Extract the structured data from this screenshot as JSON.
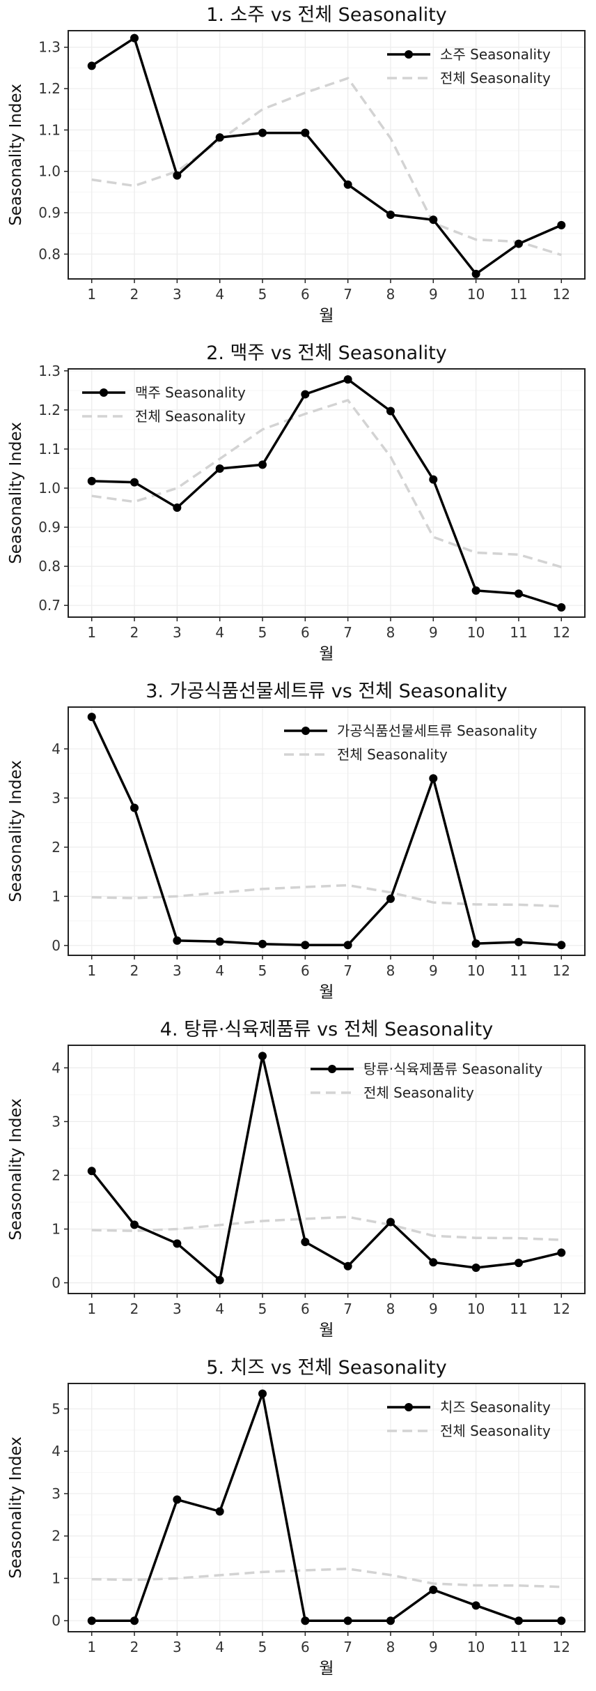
{
  "style": {
    "series_color": "#000000",
    "overall_color": "#d3d3d3"
  },
  "chart_data": [
    {
      "type": "line",
      "title": "1. 소주 vs 전체 Seasonality",
      "xlabel": "월",
      "ylabel": "Seasonality Index",
      "x": [
        1,
        2,
        3,
        4,
        5,
        6,
        7,
        8,
        9,
        10,
        11,
        12
      ],
      "ylim": [
        0.74,
        1.34
      ],
      "yticks": [
        0.8,
        0.9,
        1.0,
        1.1,
        1.2,
        1.3
      ],
      "ytick_labels": [
        "0.8",
        "0.9",
        "1.0",
        "1.1",
        "1.2",
        "1.3"
      ],
      "grid": true,
      "legend_position": "top-right",
      "series": [
        {
          "name": "소주 Seasonality",
          "style": "solid-markers",
          "values": [
            1.255,
            1.322,
            0.99,
            1.082,
            1.093,
            1.093,
            0.968,
            0.895,
            0.883,
            0.752,
            0.825,
            0.87
          ]
        },
        {
          "name": "전체 Seasonality",
          "style": "dashed",
          "values": [
            0.98,
            0.965,
            1.0,
            1.075,
            1.15,
            1.19,
            1.225,
            1.08,
            0.875,
            0.835,
            0.83,
            0.798
          ]
        }
      ]
    },
    {
      "type": "line",
      "title": "2. 맥주 vs 전체 Seasonality",
      "xlabel": "월",
      "ylabel": "Seasonality Index",
      "x": [
        1,
        2,
        3,
        4,
        5,
        6,
        7,
        8,
        9,
        10,
        11,
        12
      ],
      "ylim": [
        0.67,
        1.305
      ],
      "yticks": [
        0.7,
        0.8,
        0.9,
        1.0,
        1.1,
        1.2,
        1.3
      ],
      "ytick_labels": [
        "0.7",
        "0.8",
        "0.9",
        "1.0",
        "1.1",
        "1.2",
        "1.3"
      ],
      "grid": true,
      "legend_position": "top-left",
      "series": [
        {
          "name": "맥주 Seasonality",
          "style": "solid-markers",
          "values": [
            1.018,
            1.015,
            0.95,
            1.05,
            1.06,
            1.24,
            1.278,
            1.197,
            1.022,
            0.738,
            0.73,
            0.695
          ]
        },
        {
          "name": "전체 Seasonality",
          "style": "dashed",
          "values": [
            0.98,
            0.965,
            1.0,
            1.075,
            1.15,
            1.19,
            1.225,
            1.08,
            0.875,
            0.835,
            0.83,
            0.798
          ]
        }
      ]
    },
    {
      "type": "line",
      "title": "3. 가공식품선물세트류 vs 전체 Seasonality",
      "xlabel": "월",
      "ylabel": "Seasonality Index",
      "x": [
        1,
        2,
        3,
        4,
        5,
        6,
        7,
        8,
        9,
        10,
        11,
        12
      ],
      "ylim": [
        -0.2,
        4.85
      ],
      "yticks": [
        0,
        1,
        2,
        3,
        4
      ],
      "ytick_labels": [
        "0",
        "1",
        "2",
        "3",
        "4"
      ],
      "grid": true,
      "legend_position": "top-right",
      "series": [
        {
          "name": "가공식품선물세트류 Seasonality",
          "style": "solid-markers",
          "values": [
            4.65,
            2.8,
            0.1,
            0.08,
            0.03,
            0.01,
            0.01,
            0.95,
            3.4,
            0.04,
            0.07,
            0.01
          ]
        },
        {
          "name": "전체 Seasonality",
          "style": "dashed",
          "values": [
            0.98,
            0.965,
            1.0,
            1.075,
            1.15,
            1.19,
            1.225,
            1.08,
            0.875,
            0.835,
            0.83,
            0.798
          ]
        }
      ]
    },
    {
      "type": "line",
      "title": "4. 탕류·식육제품류 vs 전체 Seasonality",
      "xlabel": "월",
      "ylabel": "Seasonality Index",
      "x": [
        1,
        2,
        3,
        4,
        5,
        6,
        7,
        8,
        9,
        10,
        11,
        12
      ],
      "ylim": [
        -0.2,
        4.42
      ],
      "yticks": [
        0,
        1,
        2,
        3,
        4
      ],
      "ytick_labels": [
        "0",
        "1",
        "2",
        "3",
        "4"
      ],
      "grid": true,
      "legend_position": "top-right",
      "series": [
        {
          "name": "탕류·식육제품류 Seasonality",
          "style": "solid-markers",
          "values": [
            2.08,
            1.08,
            0.73,
            0.05,
            4.22,
            0.76,
            0.31,
            1.13,
            0.38,
            0.28,
            0.37,
            0.56
          ]
        },
        {
          "name": "전체 Seasonality",
          "style": "dashed",
          "values": [
            0.98,
            0.965,
            1.0,
            1.075,
            1.15,
            1.19,
            1.225,
            1.08,
            0.875,
            0.835,
            0.83,
            0.798
          ]
        }
      ]
    },
    {
      "type": "line",
      "title": "5. 치즈 vs 전체 Seasonality",
      "xlabel": "월",
      "ylabel": "Seasonality Index",
      "x": [
        1,
        2,
        3,
        4,
        5,
        6,
        7,
        8,
        9,
        10,
        11,
        12
      ],
      "ylim": [
        -0.26,
        5.6
      ],
      "yticks": [
        0,
        1,
        2,
        3,
        4,
        5
      ],
      "ytick_labels": [
        "0",
        "1",
        "2",
        "3",
        "4",
        "5"
      ],
      "grid": true,
      "legend_position": "top-right",
      "series": [
        {
          "name": "치즈 Seasonality",
          "style": "solid-markers",
          "values": [
            0.0,
            0.0,
            2.86,
            2.58,
            5.36,
            0.0,
            0.0,
            0.0,
            0.73,
            0.36,
            0.0,
            0.0
          ]
        },
        {
          "name": "전체 Seasonality",
          "style": "dashed",
          "values": [
            0.98,
            0.965,
            1.0,
            1.075,
            1.15,
            1.19,
            1.225,
            1.08,
            0.875,
            0.835,
            0.83,
            0.798
          ]
        }
      ]
    }
  ]
}
